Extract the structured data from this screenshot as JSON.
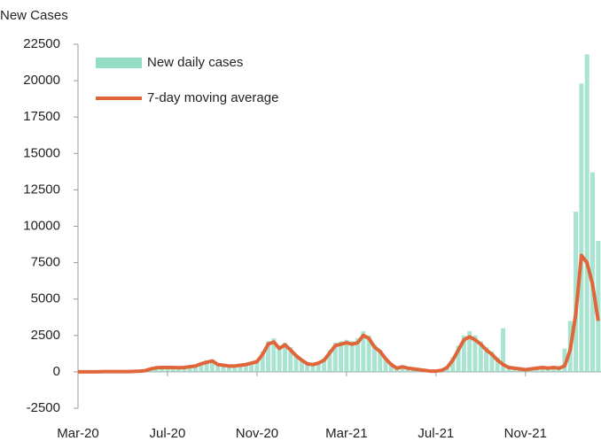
{
  "chart_data": {
    "type": "bar_line",
    "ylabel": "New Cases",
    "categories": [
      "Mar-20",
      null,
      null,
      null,
      null,
      null,
      null,
      null,
      null,
      null,
      null,
      null,
      null,
      null,
      null,
      null,
      "Jul-20",
      null,
      null,
      null,
      null,
      null,
      null,
      null,
      null,
      null,
      null,
      null,
      null,
      null,
      null,
      null,
      "Nov-20",
      null,
      null,
      null,
      null,
      null,
      null,
      null,
      null,
      null,
      null,
      null,
      null,
      null,
      null,
      null,
      "Mar-21",
      null,
      null,
      null,
      null,
      null,
      null,
      null,
      null,
      null,
      null,
      null,
      null,
      null,
      null,
      null,
      "Jul-21",
      null,
      null,
      null,
      null,
      null,
      null,
      null,
      null,
      null,
      null,
      null,
      null,
      null,
      null,
      null,
      "Nov-21",
      null,
      null,
      null,
      null,
      null,
      null,
      null,
      null,
      null,
      null,
      null,
      null,
      null
    ],
    "series": [
      {
        "name": "New daily cases",
        "color": "#93dcc6",
        "values": [
          0,
          0,
          0,
          0,
          10,
          30,
          20,
          30,
          20,
          30,
          40,
          60,
          100,
          250,
          320,
          350,
          320,
          340,
          300,
          350,
          400,
          450,
          650,
          800,
          850,
          550,
          500,
          450,
          450,
          500,
          550,
          700,
          800,
          1400,
          2100,
          2300,
          1800,
          2000,
          1700,
          1200,
          900,
          600,
          550,
          650,
          900,
          1500,
          2000,
          2100,
          2200,
          2100,
          2300,
          2800,
          2500,
          1900,
          1500,
          1000,
          600,
          300,
          400,
          300,
          250,
          200,
          150,
          80,
          80,
          150,
          400,
          1000,
          1800,
          2500,
          2800,
          2500,
          2100,
          1700,
          1400,
          1000,
          3000,
          400,
          300,
          250,
          200,
          250,
          300,
          400,
          300,
          400,
          300,
          1600,
          3500,
          11000,
          19800,
          21800,
          13700,
          9000
        ]
      },
      {
        "name": "7-day moving average",
        "color": "#e0663a",
        "values": [
          0,
          0,
          0,
          0,
          10,
          20,
          20,
          20,
          20,
          20,
          30,
          50,
          80,
          200,
          280,
          300,
          300,
          300,
          280,
          300,
          350,
          400,
          550,
          650,
          750,
          500,
          450,
          400,
          400,
          450,
          500,
          600,
          700,
          1200,
          1900,
          2050,
          1600,
          1850,
          1500,
          1100,
          800,
          550,
          500,
          600,
          800,
          1300,
          1800,
          1900,
          2000,
          1900,
          2000,
          2500,
          2300,
          1700,
          1400,
          900,
          500,
          250,
          350,
          250,
          200,
          150,
          100,
          50,
          50,
          100,
          300,
          800,
          1500,
          2200,
          2400,
          2200,
          1900,
          1500,
          1200,
          800,
          500,
          300,
          250,
          200,
          150,
          200,
          250,
          300,
          250,
          300,
          250,
          400,
          1500,
          4000,
          8000,
          7500,
          6000,
          3500
        ]
      }
    ],
    "ylim": [
      -2500,
      22500
    ],
    "yticks": [
      -2500,
      0,
      2500,
      5000,
      7500,
      10000,
      12500,
      15000,
      17500,
      20000,
      22500
    ],
    "legend": "upper left"
  }
}
